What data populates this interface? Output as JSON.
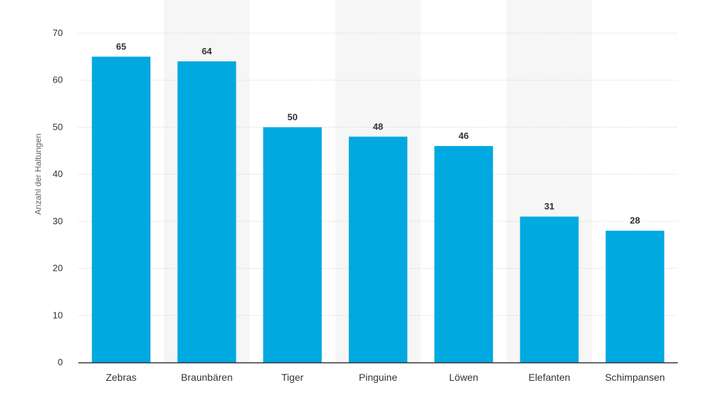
{
  "chart_data": {
    "type": "bar",
    "categories": [
      "Zebras",
      "Braunbären",
      "Tiger",
      "Pinguine",
      "Löwen",
      "Elefanten",
      "Schimpansen"
    ],
    "values": [
      65,
      64,
      50,
      48,
      46,
      31,
      28
    ],
    "value_labels": [
      "65",
      "64",
      "50",
      "48",
      "46",
      "31",
      "28"
    ],
    "xlabel": "",
    "ylabel": "Anzahl der Haltungen",
    "ylim": [
      0,
      70
    ],
    "yticks": [
      0,
      10,
      20,
      30,
      40,
      50,
      60,
      70
    ],
    "ytick_labels": [
      "0",
      "10",
      "20",
      "30",
      "40",
      "50",
      "60",
      "70"
    ],
    "grid": true,
    "legend": "none",
    "colors": {
      "bar": "#00a9e0",
      "band": "#f6f6f6",
      "grid": "#c8c8c8",
      "axis": "#333333"
    }
  }
}
